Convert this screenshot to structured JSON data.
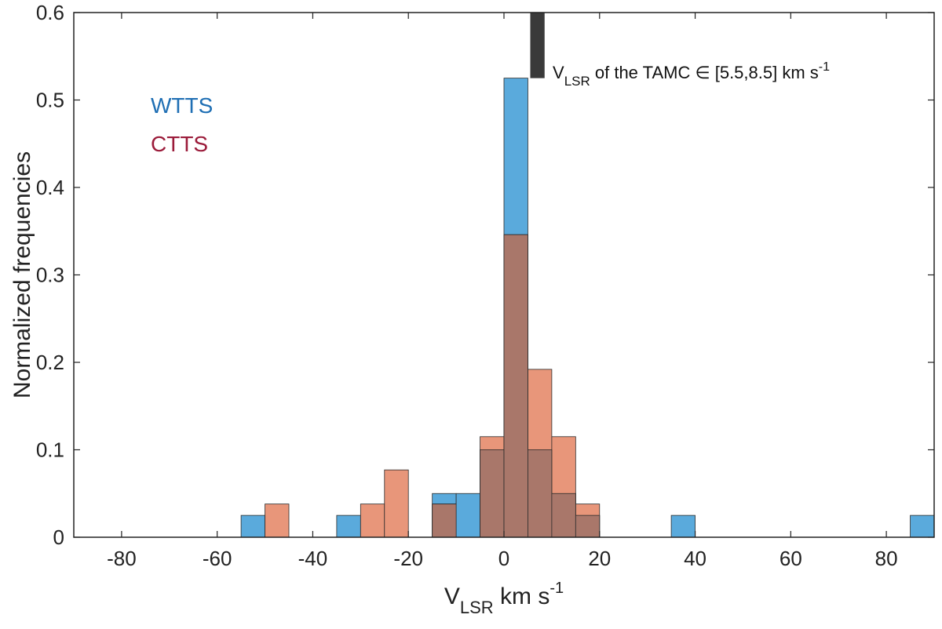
{
  "chart_data": {
    "type": "bar",
    "subtype": "overlaid-histogram",
    "bin_width": 5,
    "xlim": [
      -90,
      90
    ],
    "ylim": [
      0,
      0.6
    ],
    "xticks": [
      -80,
      -60,
      -40,
      -20,
      0,
      20,
      40,
      60,
      80
    ],
    "yticks": [
      0,
      0.1,
      0.2,
      0.3,
      0.4,
      0.5,
      0.6
    ],
    "xtick_labels": [
      "-80",
      "-60",
      "-40",
      "-20",
      "0",
      "20",
      "40",
      "60",
      "80"
    ],
    "ytick_labels": [
      "0",
      "0.1",
      "0.2",
      "0.3",
      "0.4",
      "0.5",
      "0.6"
    ],
    "xlabel": {
      "main": "V",
      "sub": "LSR",
      "rest": " km s",
      "sup": "-1"
    },
    "ylabel": "Normalized frequencies",
    "grid": false,
    "legend_position": "top-left",
    "overlap_color": "#a9776a",
    "series": [
      {
        "name": "WTTS",
        "color": "#5aaadc",
        "label_color": "#1f6fb4",
        "bins": [
          {
            "x0": -55,
            "x1": -50,
            "y": 0.025
          },
          {
            "x0": -35,
            "x1": -30,
            "y": 0.025
          },
          {
            "x0": -15,
            "x1": -10,
            "y": 0.05
          },
          {
            "x0": -10,
            "x1": -5,
            "y": 0.05
          },
          {
            "x0": -5,
            "x1": 0,
            "y": 0.1
          },
          {
            "x0": 0,
            "x1": 5,
            "y": 0.525
          },
          {
            "x0": 5,
            "x1": 10,
            "y": 0.1
          },
          {
            "x0": 10,
            "x1": 15,
            "y": 0.05
          },
          {
            "x0": 15,
            "x1": 20,
            "y": 0.025
          },
          {
            "x0": 35,
            "x1": 40,
            "y": 0.025
          },
          {
            "x0": 85,
            "x1": 90,
            "y": 0.025
          }
        ]
      },
      {
        "name": "CTTS",
        "color": "#e8967a",
        "label_color": "#9b1b3a",
        "bins": [
          {
            "x0": -50,
            "x1": -45,
            "y": 0.038
          },
          {
            "x0": -30,
            "x1": -25,
            "y": 0.038
          },
          {
            "x0": -25,
            "x1": -20,
            "y": 0.077
          },
          {
            "x0": -15,
            "x1": -10,
            "y": 0.038
          },
          {
            "x0": -5,
            "x1": 0,
            "y": 0.115
          },
          {
            "x0": 0,
            "x1": 5,
            "y": 0.346
          },
          {
            "x0": 5,
            "x1": 10,
            "y": 0.192
          },
          {
            "x0": 10,
            "x1": 15,
            "y": 0.115
          },
          {
            "x0": 15,
            "x1": 20,
            "y": 0.038
          }
        ]
      }
    ],
    "annotation": {
      "band_x0": 5.5,
      "band_x1": 8.5,
      "band_y0": 0.525,
      "band_y1": 0.6,
      "color": "#3a3a3a",
      "text_main": "V",
      "text_sub": "LSR",
      "text_rest": " of the TAMC ∈ [5.5,8.5] km s",
      "text_sup": "-1"
    }
  }
}
